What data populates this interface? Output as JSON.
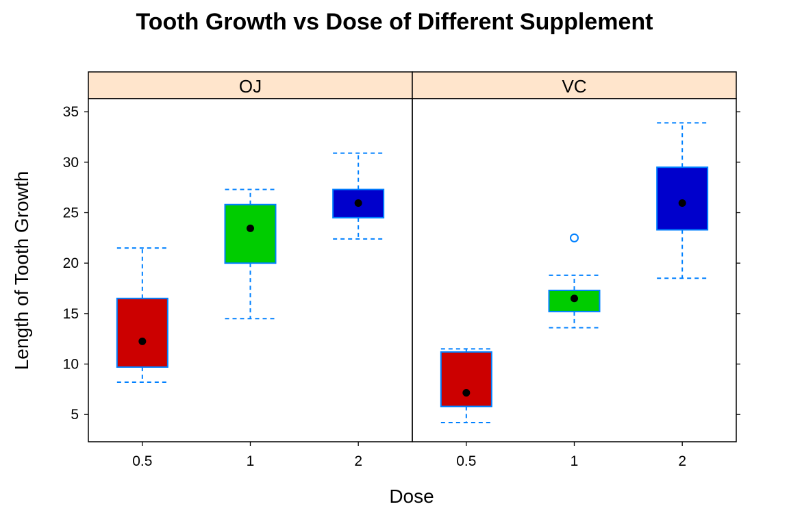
{
  "chart_data": {
    "type": "box",
    "title": "Tooth Growth vs Dose of Different Supplement",
    "xlabel": "Dose",
    "ylabel": "Length of Tooth Growth",
    "ylim": [
      2.3,
      36.3
    ],
    "y_ticks": [
      5,
      10,
      15,
      20,
      25,
      30,
      35
    ],
    "categories": [
      "0.5",
      "1",
      "2"
    ],
    "panels": [
      {
        "name": "OJ",
        "boxes": [
          {
            "dose": "0.5",
            "whisker_low": 8.2,
            "q1": 9.7,
            "median": 12.25,
            "q3": 16.5,
            "whisker_high": 21.5,
            "outliers": [],
            "color": "#cc0000"
          },
          {
            "dose": "1",
            "whisker_low": 14.5,
            "q1": 20.0,
            "median": 23.45,
            "q3": 25.8,
            "whisker_high": 27.3,
            "outliers": [],
            "color": "#00cc00"
          },
          {
            "dose": "2",
            "whisker_low": 22.4,
            "q1": 24.5,
            "median": 25.95,
            "q3": 27.3,
            "whisker_high": 30.9,
            "outliers": [],
            "color": "#0000cc"
          }
        ]
      },
      {
        "name": "VC",
        "boxes": [
          {
            "dose": "0.5",
            "whisker_low": 4.2,
            "q1": 5.8,
            "median": 7.15,
            "q3": 11.2,
            "whisker_high": 11.5,
            "outliers": [],
            "color": "#cc0000"
          },
          {
            "dose": "1",
            "whisker_low": 13.6,
            "q1": 15.2,
            "median": 16.5,
            "q3": 17.3,
            "whisker_high": 18.8,
            "outliers": [
              22.5
            ],
            "color": "#00cc00"
          },
          {
            "dose": "2",
            "whisker_low": 18.5,
            "q1": 23.3,
            "median": 25.95,
            "q3": 29.5,
            "whisker_high": 33.9,
            "outliers": [],
            "color": "#0000cc"
          }
        ]
      }
    ],
    "strip_color": "#ffe5cc",
    "whisker_color": "#0080ff",
    "median_marker_color": "#000000"
  }
}
